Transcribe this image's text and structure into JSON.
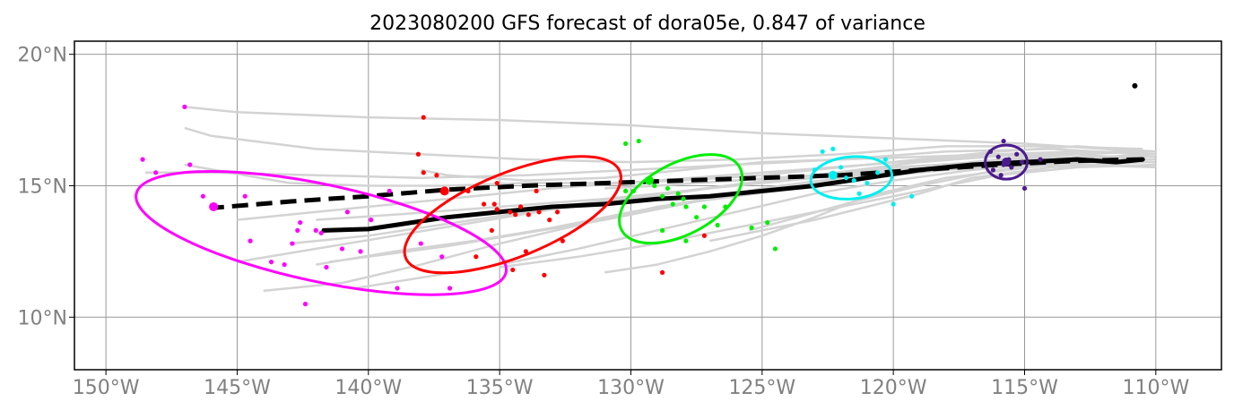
{
  "title": "2023080200 GFS forecast of dora05e, 0.847 of variance",
  "colors": {
    "grid": "#999999",
    "member_tracks": "#d3d3d3",
    "mean_track": "#000000",
    "magenta": "#ff00ff",
    "red": "#ff0000",
    "green": "#00ee00",
    "cyan": "#00eeee",
    "purple": "#4b1b8c"
  },
  "chart_data": {
    "type": "map",
    "lon_range": [
      -151.2,
      -107.5
    ],
    "lat_range": [
      8.0,
      20.5
    ],
    "x_ticks": [
      {
        "value": -150,
        "label": "150°W"
      },
      {
        "value": -145,
        "label": "145°W"
      },
      {
        "value": -140,
        "label": "140°W"
      },
      {
        "value": -135,
        "label": "135°W"
      },
      {
        "value": -130,
        "label": "130°W"
      },
      {
        "value": -125,
        "label": "125°W"
      },
      {
        "value": -120,
        "label": "120°W"
      },
      {
        "value": -115,
        "label": "115°W"
      },
      {
        "value": -110,
        "label": "110°W"
      }
    ],
    "y_ticks": [
      {
        "value": 10,
        "label": "10°N"
      },
      {
        "value": 15,
        "label": "15°N"
      },
      {
        "value": 20,
        "label": "20°N"
      }
    ],
    "grid": true,
    "mean_track_solid": [
      [
        -110.5,
        16.0
      ],
      [
        -111.5,
        15.9
      ],
      [
        -113,
        16.0
      ],
      [
        -115,
        15.9
      ],
      [
        -117,
        15.8
      ],
      [
        -119,
        15.6
      ],
      [
        -121,
        15.3
      ],
      [
        -123,
        15.0
      ],
      [
        -125,
        14.8
      ],
      [
        -127,
        14.6
      ],
      [
        -129,
        14.5
      ],
      [
        -131,
        14.3
      ],
      [
        -133,
        14.2
      ],
      [
        -135,
        14.0
      ],
      [
        -137,
        13.8
      ],
      [
        -139,
        13.5
      ],
      [
        -140,
        13.35
      ],
      [
        -141.7,
        13.3
      ]
    ],
    "mean_track_dashed": [
      [
        -110.5,
        16.0
      ],
      [
        -113,
        15.95
      ],
      [
        -116,
        15.8
      ],
      [
        -119,
        15.6
      ],
      [
        -122,
        15.4
      ],
      [
        -125,
        15.3
      ],
      [
        -128,
        15.2
      ],
      [
        -131,
        15.1
      ],
      [
        -134,
        15.0
      ],
      [
        -137,
        14.85
      ],
      [
        -140,
        14.6
      ],
      [
        -143,
        14.4
      ],
      [
        -146,
        14.15
      ]
    ],
    "member_tracks": [
      [
        [
          -110,
          16.3
        ],
        [
          -113,
          16.5
        ],
        [
          -116,
          16.3
        ],
        [
          -119,
          16.0
        ],
        [
          -122,
          15.7
        ],
        [
          -125,
          15.4
        ],
        [
          -128,
          15.2
        ],
        [
          -131,
          15.1
        ],
        [
          -134,
          15.1
        ],
        [
          -137,
          15.0
        ],
        [
          -140,
          15.0
        ],
        [
          -143,
          15.1
        ],
        [
          -147,
          15.8
        ]
      ],
      [
        [
          -110,
          16.2
        ],
        [
          -114,
          16.0
        ],
        [
          -118,
          15.8
        ],
        [
          -121,
          15.5
        ],
        [
          -124,
          15.2
        ],
        [
          -127,
          14.9
        ],
        [
          -130,
          14.5
        ],
        [
          -133,
          14.1
        ],
        [
          -136,
          13.6
        ],
        [
          -139,
          13.1
        ],
        [
          -142,
          12.6
        ],
        [
          -145,
          12.1
        ]
      ],
      [
        [
          -110,
          16.1
        ],
        [
          -113,
          16.1
        ],
        [
          -117,
          15.9
        ],
        [
          -120,
          15.5
        ],
        [
          -123,
          15.0
        ],
        [
          -126,
          14.6
        ],
        [
          -129,
          14.2
        ],
        [
          -132,
          13.5
        ],
        [
          -135,
          12.8
        ],
        [
          -138,
          12.0
        ],
        [
          -141,
          11.3
        ],
        [
          -144,
          11.0
        ]
      ],
      [
        [
          -110,
          16.0
        ],
        [
          -114,
          15.9
        ],
        [
          -117,
          15.6
        ],
        [
          -120,
          15.2
        ],
        [
          -123,
          14.7
        ],
        [
          -126,
          14.0
        ],
        [
          -129,
          13.3
        ],
        [
          -132,
          12.6
        ],
        [
          -135,
          12.0
        ],
        [
          -138,
          11.5
        ],
        [
          -140.5,
          11.1
        ]
      ],
      [
        [
          -110.5,
          16.2
        ],
        [
          -114,
          16.4
        ],
        [
          -118,
          16.3
        ],
        [
          -122,
          16.0
        ],
        [
          -126,
          15.8
        ],
        [
          -130,
          15.6
        ],
        [
          -134,
          15.4
        ],
        [
          -138,
          15.3
        ],
        [
          -142,
          15.4
        ],
        [
          -146,
          15.5
        ],
        [
          -148.5,
          15.5
        ]
      ],
      [
        [
          -110,
          15.8
        ],
        [
          -113,
          15.7
        ],
        [
          -116,
          15.4
        ],
        [
          -119,
          14.8
        ],
        [
          -122,
          14.2
        ],
        [
          -125,
          13.6
        ],
        [
          -127,
          13.2
        ],
        [
          -129,
          12.8
        ],
        [
          -132,
          12.3
        ],
        [
          -135,
          11.9
        ]
      ],
      [
        [
          -110.5,
          16.0
        ],
        [
          -113,
          16.2
        ],
        [
          -117,
          16.1
        ],
        [
          -121,
          15.8
        ],
        [
          -125,
          15.5
        ],
        [
          -129,
          15.2
        ],
        [
          -133,
          14.9
        ],
        [
          -136,
          14.6
        ],
        [
          -139,
          14.3
        ],
        [
          -142,
          14.0
        ],
        [
          -145,
          13.7
        ]
      ],
      [
        [
          -110,
          15.9
        ],
        [
          -114,
          15.9
        ],
        [
          -118,
          15.6
        ],
        [
          -122,
          15.2
        ],
        [
          -126,
          14.7
        ],
        [
          -130,
          14.0
        ],
        [
          -133,
          13.4
        ],
        [
          -136,
          12.9
        ],
        [
          -139,
          12.5
        ],
        [
          -142,
          12.0
        ]
      ],
      [
        [
          -111,
          16.3
        ],
        [
          -115,
          16.2
        ],
        [
          -119,
          15.9
        ],
        [
          -123,
          15.4
        ],
        [
          -127,
          14.9
        ],
        [
          -131,
          14.5
        ],
        [
          -135,
          14.2
        ],
        [
          -139,
          13.9
        ],
        [
          -142,
          13.7
        ]
      ],
      [
        [
          -110.5,
          16.1
        ],
        [
          -115,
          16.0
        ],
        [
          -120,
          15.7
        ],
        [
          -124,
          15.3
        ],
        [
          -128,
          14.8
        ],
        [
          -132,
          14.3
        ],
        [
          -136,
          13.7
        ],
        [
          -140,
          13.1
        ],
        [
          -143,
          12.8
        ]
      ],
      [
        [
          -110,
          15.7
        ],
        [
          -113,
          15.8
        ],
        [
          -117,
          15.7
        ],
        [
          -120,
          15.6
        ],
        [
          -123,
          15.4
        ],
        [
          -126,
          15.2
        ],
        [
          -129,
          15.0
        ],
        [
          -131,
          14.9
        ]
      ],
      [
        [
          -110.5,
          16.4
        ],
        [
          -114,
          16.5
        ],
        [
          -118,
          16.5
        ],
        [
          -122,
          16.2
        ],
        [
          -126,
          16.0
        ],
        [
          -130,
          15.9
        ],
        [
          -134,
          16.0
        ],
        [
          -138,
          16.2
        ],
        [
          -142,
          16.4
        ],
        [
          -146,
          16.9
        ],
        [
          -147,
          17.2
        ]
      ],
      [
        [
          -110.5,
          16.3
        ],
        [
          -115,
          16.6
        ],
        [
          -120,
          16.8
        ],
        [
          -125,
          17.0
        ],
        [
          -130,
          17.3
        ],
        [
          -135,
          17.5
        ],
        [
          -140,
          17.6
        ],
        [
          -145,
          17.8
        ],
        [
          -147,
          18.0
        ]
      ],
      [
        [
          -110.5,
          16.0
        ],
        [
          -114,
          15.8
        ],
        [
          -118,
          15.3
        ],
        [
          -121,
          14.6
        ],
        [
          -123,
          13.8
        ],
        [
          -125,
          13.1
        ],
        [
          -127,
          12.5
        ],
        [
          -129,
          12.0
        ],
        [
          -131,
          11.7
        ]
      ],
      [
        [
          -110.5,
          15.9
        ],
        [
          -114,
          15.7
        ],
        [
          -117,
          15.3
        ],
        [
          -119,
          14.7
        ],
        [
          -121,
          14.2
        ],
        [
          -123,
          13.7
        ],
        [
          -125,
          13.3
        ],
        [
          -127,
          12.9
        ]
      ],
      [
        [
          -110,
          16.2
        ],
        [
          -113,
          16.3
        ],
        [
          -116,
          16.2
        ],
        [
          -119,
          16.1
        ],
        [
          -122,
          16.0
        ],
        [
          -125,
          15.9
        ],
        [
          -128,
          15.6
        ],
        [
          -131,
          15.3
        ],
        [
          -134,
          15.2
        ],
        [
          -137,
          15.4
        ],
        [
          -138,
          15.6
        ]
      ],
      [
        [
          -110.5,
          16.1
        ],
        [
          -113,
          15.9
        ],
        [
          -116,
          15.6
        ],
        [
          -119,
          15.0
        ],
        [
          -121.5,
          14.4
        ],
        [
          -124,
          13.7
        ],
        [
          -125.5,
          13.3
        ]
      ],
      [
        [
          -110,
          16.3
        ],
        [
          -113,
          16.2
        ],
        [
          -116,
          16.0
        ],
        [
          -119,
          15.7
        ],
        [
          -122,
          15.3
        ],
        [
          -125,
          14.9
        ],
        [
          -128,
          14.3
        ],
        [
          -131,
          13.7
        ],
        [
          -134,
          13.2
        ],
        [
          -137,
          12.7
        ],
        [
          -140,
          12.3
        ],
        [
          -141.5,
          12.1
        ]
      ]
    ],
    "groups": [
      {
        "color_key": "magenta",
        "center": [
          -145.9,
          14.2
        ],
        "ellipse": {
          "cx": -141.8,
          "cy": 13.2,
          "rx": 7.2,
          "ry": 1.85,
          "angle_deg": 12
        },
        "points": [
          [
            -148.6,
            16.0
          ],
          [
            -148.1,
            15.5
          ],
          [
            -147.0,
            18.0
          ],
          [
            -146.8,
            15.8
          ],
          [
            -146.3,
            14.6
          ],
          [
            -144.7,
            14.6
          ],
          [
            -144.5,
            12.9
          ],
          [
            -143.7,
            12.1
          ],
          [
            -143.2,
            12.0
          ],
          [
            -142.9,
            12.8
          ],
          [
            -142.7,
            13.3
          ],
          [
            -142.6,
            13.6
          ],
          [
            -142.4,
            10.5
          ],
          [
            -142.0,
            13.3
          ],
          [
            -141.8,
            13.2
          ],
          [
            -141.6,
            11.9
          ],
          [
            -141.0,
            12.6
          ],
          [
            -140.8,
            14.0
          ],
          [
            -140.3,
            12.5
          ],
          [
            -139.9,
            13.7
          ],
          [
            -139.2,
            14.8
          ],
          [
            -138.9,
            11.1
          ],
          [
            -138.0,
            12.8
          ],
          [
            -137.2,
            12.3
          ],
          [
            -136.9,
            11.1
          ]
        ]
      },
      {
        "color_key": "red",
        "center": [
          -137.1,
          14.8
        ],
        "ellipse": {
          "cx": -134.5,
          "cy": 13.9,
          "rx": 4.4,
          "ry": 1.6,
          "angle_deg": -22
        },
        "points": [
          [
            -137.9,
            17.6
          ],
          [
            -138.1,
            16.2
          ],
          [
            -137.9,
            15.5
          ],
          [
            -137.4,
            15.4
          ],
          [
            -136.2,
            14.8
          ],
          [
            -135.6,
            14.3
          ],
          [
            -135.2,
            14.3
          ],
          [
            -135.1,
            14.1
          ],
          [
            -134.6,
            14.0
          ],
          [
            -134.4,
            13.9
          ],
          [
            -134.2,
            14.2
          ],
          [
            -133.9,
            13.9
          ],
          [
            -133.6,
            14.8
          ],
          [
            -133.5,
            14.0
          ],
          [
            -133.1,
            13.7
          ],
          [
            -132.8,
            14.0
          ],
          [
            -132.6,
            12.9
          ],
          [
            -135.9,
            12.3
          ],
          [
            -134.0,
            12.5
          ],
          [
            -133.3,
            11.6
          ],
          [
            -135.3,
            13.3
          ],
          [
            -134.5,
            11.8
          ],
          [
            -128.8,
            11.7
          ],
          [
            -127.2,
            13.1
          ],
          [
            -135.1,
            15.1
          ]
        ]
      },
      {
        "color_key": "green",
        "center": [
          -129.3,
          15.2
        ],
        "ellipse": {
          "cx": -128.1,
          "cy": 14.5,
          "rx": 2.55,
          "ry": 1.35,
          "angle_deg": -28
        },
        "points": [
          [
            -130.2,
            16.6
          ],
          [
            -129.7,
            16.7
          ],
          [
            -130.2,
            14.8
          ],
          [
            -129.9,
            14.8
          ],
          [
            -129.1,
            15.0
          ],
          [
            -128.8,
            14.6
          ],
          [
            -128.6,
            14.9
          ],
          [
            -128.4,
            14.3
          ],
          [
            -128.2,
            14.7
          ],
          [
            -128.0,
            14.5
          ],
          [
            -127.9,
            14.2
          ],
          [
            -127.5,
            13.8
          ],
          [
            -127.2,
            14.2
          ],
          [
            -126.7,
            13.5
          ],
          [
            -126.4,
            14.2
          ],
          [
            -125.4,
            13.4
          ],
          [
            -128.8,
            13.3
          ],
          [
            -127.9,
            12.9
          ],
          [
            -124.8,
            13.6
          ],
          [
            -124.5,
            12.6
          ]
        ]
      },
      {
        "color_key": "cyan",
        "center": [
          -122.3,
          15.4
        ],
        "ellipse": {
          "cx": -121.6,
          "cy": 15.3,
          "rx": 1.55,
          "ry": 0.8,
          "angle_deg": -5
        },
        "points": [
          [
            -123.0,
            15.6
          ],
          [
            -122.7,
            16.3
          ],
          [
            -122.3,
            16.4
          ],
          [
            -122.0,
            15.7
          ],
          [
            -121.8,
            15.3
          ],
          [
            -121.5,
            15.2
          ],
          [
            -121.3,
            14.7
          ],
          [
            -121.0,
            15.1
          ],
          [
            -120.6,
            15.5
          ],
          [
            -120.3,
            16.0
          ],
          [
            -120.0,
            14.3
          ],
          [
            -119.3,
            14.6
          ]
        ]
      },
      {
        "color_key": "purple",
        "center": [
          -115.7,
          15.9
        ],
        "ellipse": {
          "cx": -115.7,
          "cy": 15.9,
          "rx": 0.8,
          "ry": 0.65,
          "angle_deg": 0
        },
        "points": [
          [
            -116.2,
            15.6
          ],
          [
            -116.0,
            16.1
          ],
          [
            -115.8,
            15.8
          ],
          [
            -115.6,
            16.0
          ],
          [
            -115.5,
            15.7
          ],
          [
            -115.3,
            16.2
          ],
          [
            -115.1,
            15.9
          ],
          [
            -115.0,
            14.9
          ],
          [
            -114.4,
            16.0
          ],
          [
            -115.8,
            16.7
          ],
          [
            -116.3,
            16.3
          ],
          [
            -115.9,
            15.4
          ]
        ]
      }
    ],
    "extra_marker": [
      -110.8,
      18.8
    ]
  }
}
